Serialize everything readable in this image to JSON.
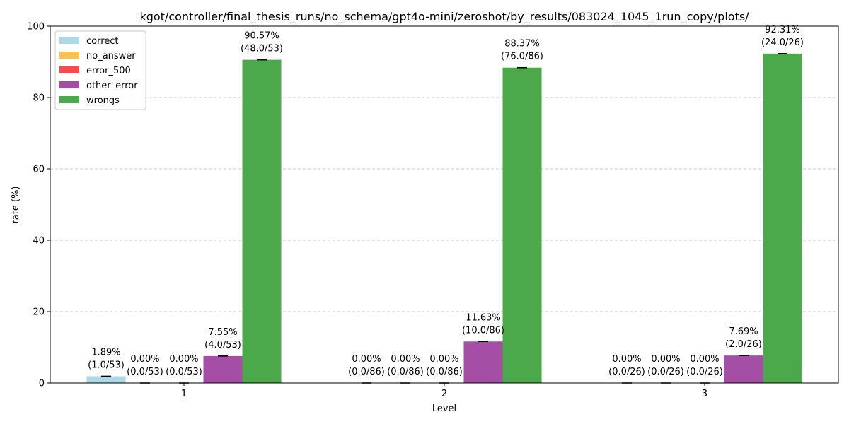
{
  "chart_data": {
    "type": "bar",
    "title": "kgot/controller/final_thesis_runs/no_schema/gpt4o-mini/zeroshot/by_results/083024_1045_1run_copy/plots/",
    "xlabel": "Level",
    "ylabel": "rate (%)",
    "ylim": [
      0,
      100
    ],
    "yticks": [
      "0",
      "20",
      "40",
      "60",
      "80",
      "100"
    ],
    "grid": "y-dashed",
    "legend_position": "top-left",
    "categories": [
      "1",
      "2",
      "3"
    ],
    "series": [
      {
        "name": "correct",
        "color": "#add8e6",
        "values": [
          1.89,
          0.0,
          0.0
        ],
        "labels": [
          [
            "1.89%",
            "(1.0/53)"
          ],
          [
            "",
            ""
          ],
          [
            "",
            ""
          ]
        ]
      },
      {
        "name": "no_answer",
        "color": "#ffc04d",
        "values": [
          0.0,
          0.0,
          0.0
        ],
        "labels": [
          [
            "0.00%",
            "(0.0/53)"
          ],
          [
            "0.00%",
            "(0.0/86)"
          ],
          [
            "0.00%",
            "(0.0/26)"
          ]
        ]
      },
      {
        "name": "error_500",
        "color": "#f24c4c",
        "values": [
          0.0,
          0.0,
          0.0
        ],
        "labels": [
          [
            "0.00%",
            "(0.0/53)"
          ],
          [
            "0.00%",
            "(0.0/86)"
          ],
          [
            "0.00%",
            "(0.0/26)"
          ]
        ]
      },
      {
        "name": "other_error",
        "color": "#a44ea6",
        "values": [
          7.55,
          11.63,
          7.69
        ],
        "labels": [
          [
            "7.55%",
            "(4.0/53)"
          ],
          [
            "11.63%",
            "(10.0/86)"
          ],
          [
            "7.69%",
            "(2.0/26)"
          ]
        ]
      },
      {
        "name": "wrongs",
        "color": "#4ba84b",
        "values": [
          90.57,
          88.37,
          92.31
        ],
        "labels": [
          [
            "90.57%",
            "(48.0/53)"
          ],
          [
            "88.37%",
            "(76.0/86)"
          ],
          [
            "92.31%",
            "(24.0/26)"
          ]
        ]
      }
    ],
    "correct_zero_labels": [
      [
        "",
        ""
      ],
      [
        "0.00%",
        "(0.0/86)"
      ],
      [
        "0.00%",
        "(0.0/26)"
      ]
    ]
  }
}
